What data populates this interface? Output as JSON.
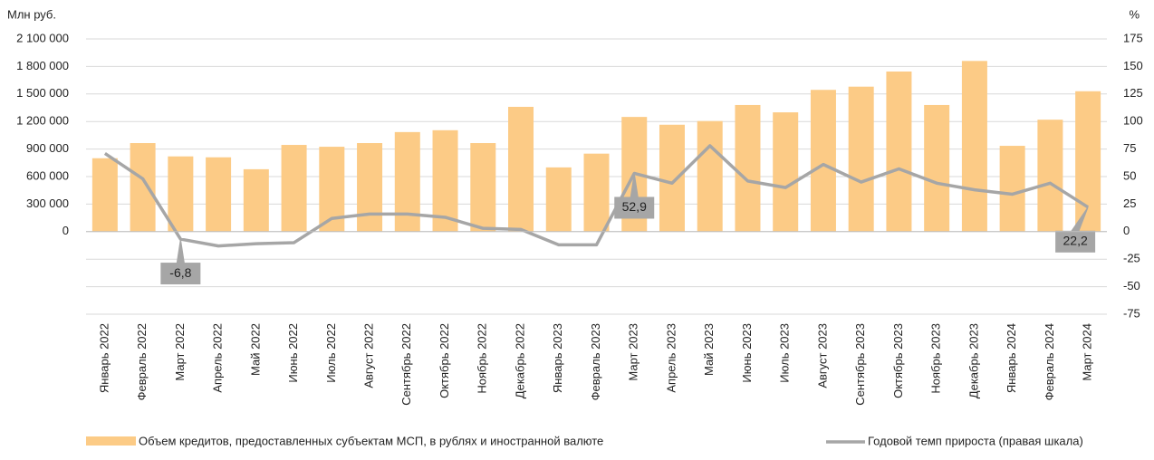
{
  "chart_data": {
    "type": "bar",
    "y_label": "Млн руб.",
    "y2_label": "%",
    "categories": [
      "Январь 2022",
      "Февраль 2022",
      "Март 2022",
      "Апрель 2022",
      "Май 2022",
      "Июнь 2022",
      "Июль 2022",
      "Август 2022",
      "Сентябрь 2022",
      "Октябрь 2022",
      "Ноябрь 2022",
      "Декабрь 2022",
      "Январь 2023",
      "Февраль 2023",
      "Март 2023",
      "Апрель 2023",
      "Май 2023",
      "Июнь 2023",
      "Июль 2023",
      "Август 2023",
      "Сентябрь 2023",
      "Октябрь 2023",
      "Ноябрь 2023",
      "Декабрь 2023",
      "Январь 2024",
      "Февраль 2024",
      "Март 2024"
    ],
    "series": [
      {
        "name": "Объем кредитов, предоставленных субъектам МСП, в рублях и иностранной валюте",
        "type": "bar",
        "color": "#fccb86",
        "values": [
          800000,
          965000,
          820000,
          810000,
          680000,
          945000,
          925000,
          965000,
          1085000,
          1105000,
          965000,
          1360000,
          700000,
          850000,
          1250000,
          1165000,
          1205000,
          1380000,
          1300000,
          1545000,
          1580000,
          1745000,
          1380000,
          1860000,
          935000,
          1220000,
          1530000
        ]
      },
      {
        "name": "Годовой темп прироста (правая шкала)",
        "type": "line",
        "axis": "y2",
        "color": "#a6a6a6",
        "values": [
          71,
          48,
          -6.8,
          -13,
          -11,
          -10,
          12,
          16,
          16,
          13,
          3,
          2,
          -12,
          -12,
          52.9,
          44,
          78,
          46,
          40,
          61,
          45,
          57,
          44,
          38,
          34,
          44,
          22.2
        ],
        "value_labels": [
          null,
          null,
          "-6,8",
          null,
          null,
          null,
          null,
          null,
          null,
          null,
          null,
          null,
          null,
          null,
          "52,9",
          null,
          null,
          null,
          null,
          null,
          null,
          null,
          null,
          null,
          null,
          null,
          "22,2"
        ]
      }
    ],
    "ylim": [
      -900000,
      2100000
    ],
    "yticks": [
      {
        "value": 0,
        "label": "0"
      },
      {
        "value": 300000,
        "label": "300 000"
      },
      {
        "value": 600000,
        "label": "600 000"
      },
      {
        "value": 900000,
        "label": "900 000"
      },
      {
        "value": 1200000,
        "label": "1 200 000"
      },
      {
        "value": 1500000,
        "label": "1 500 000"
      },
      {
        "value": 1800000,
        "label": "1 800 000"
      },
      {
        "value": 2100000,
        "label": "2 100 000"
      }
    ],
    "y2lim": [
      -75,
      175
    ],
    "y2ticks": [
      -75,
      -50,
      -25,
      0,
      25,
      50,
      75,
      100,
      125,
      150,
      175
    ],
    "grid": true
  }
}
